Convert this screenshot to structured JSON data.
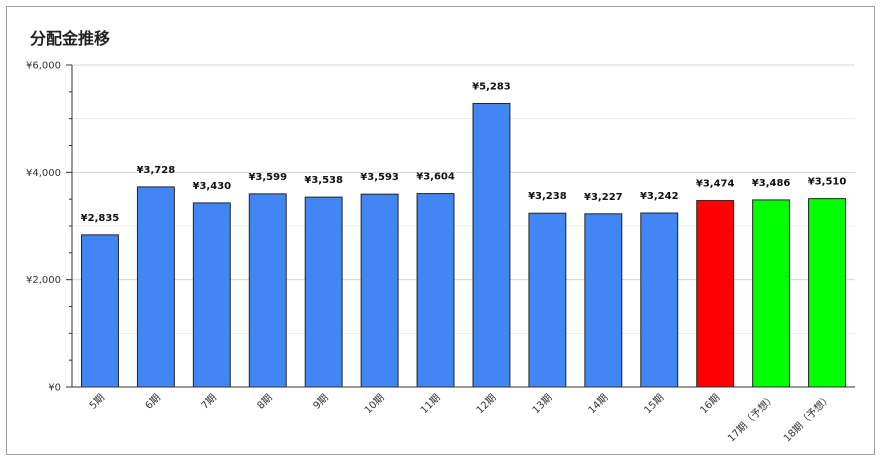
{
  "chart_data": {
    "type": "bar",
    "title": "分配金推移",
    "xlabel": "",
    "ylabel": "",
    "ylim": [
      0,
      6000
    ],
    "y_ticks": [
      "¥0",
      "¥2,000",
      "¥4,000",
      "¥6,000"
    ],
    "grid": true,
    "categories": [
      "5期",
      "6期",
      "7期",
      "8期",
      "9期",
      "10期",
      "11期",
      "12期",
      "13期",
      "14期",
      "15期",
      "16期",
      "17期（予想）",
      "18期（予想）"
    ],
    "values": [
      2835,
      3728,
      3430,
      3599,
      3538,
      3593,
      3604,
      5283,
      3238,
      3227,
      3242,
      3474,
      3486,
      3510
    ],
    "data_labels": [
      "¥2,835",
      "¥3,728",
      "¥3,430",
      "¥3,599",
      "¥3,538",
      "¥3,593",
      "¥3,604",
      "¥5,283",
      "¥3,238",
      "¥3,227",
      "¥3,242",
      "¥3,474",
      "¥3,486",
      "¥3,510"
    ],
    "bar_colors": [
      "#4285f4",
      "#4285f4",
      "#4285f4",
      "#4285f4",
      "#4285f4",
      "#4285f4",
      "#4285f4",
      "#4285f4",
      "#4285f4",
      "#4285f4",
      "#4285f4",
      "#ff0000",
      "#00ff00",
      "#00ff00"
    ]
  }
}
